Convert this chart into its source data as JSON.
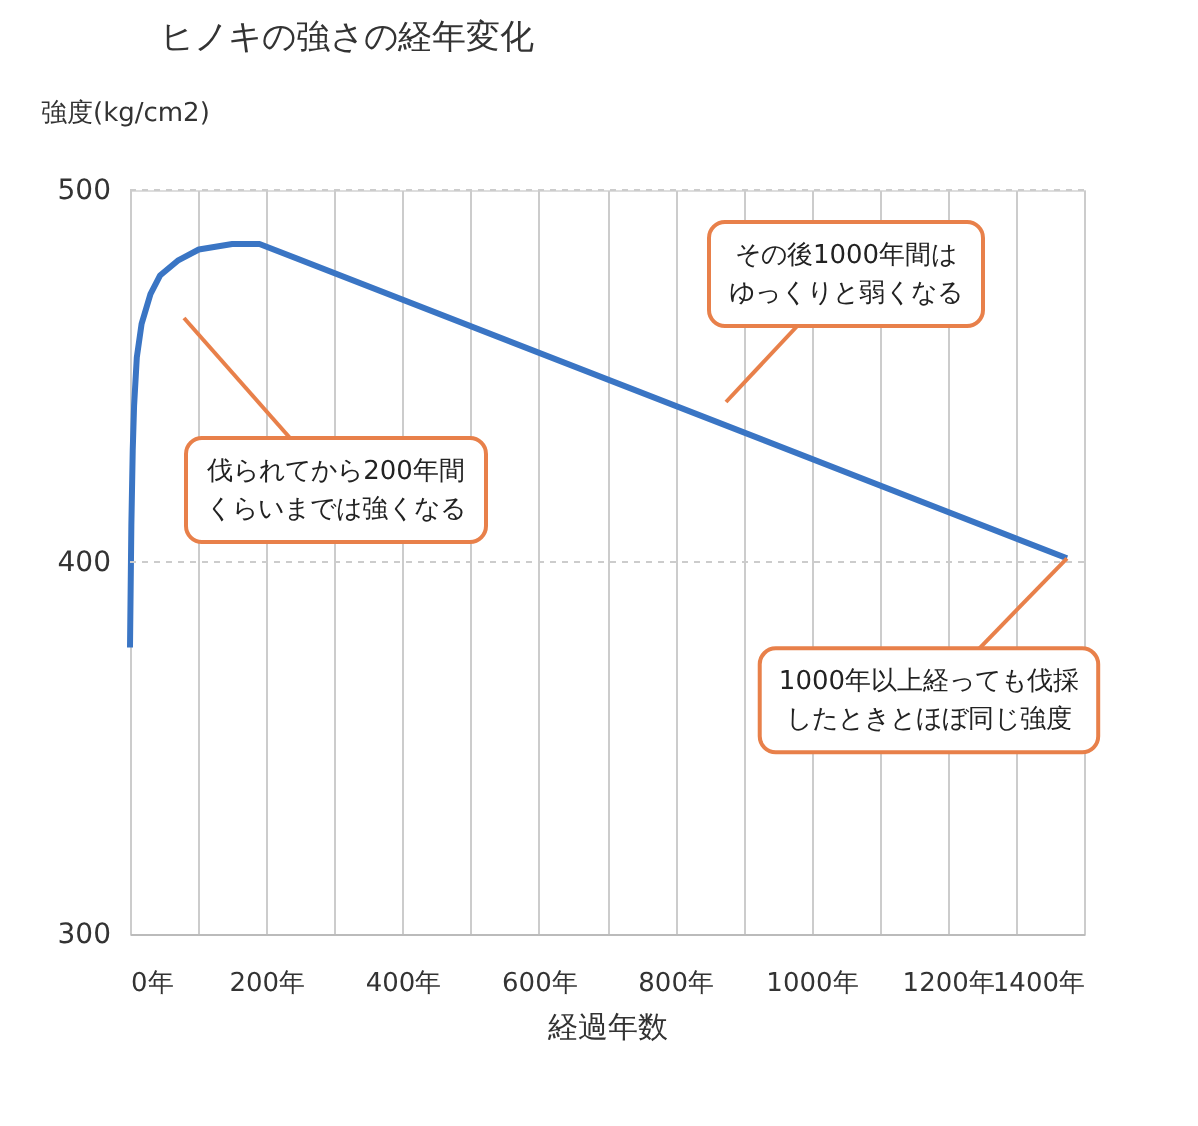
{
  "chart_data": {
    "type": "line",
    "title": "ヒノキの強さの経年変化",
    "ylabel": "強度(kg/cm2)",
    "xlabel": "経過年数",
    "x": [
      0,
      2,
      4,
      6,
      10,
      17,
      30,
      44,
      70,
      101,
      150,
      190,
      1375
    ],
    "series": [
      {
        "color": "#3a75c4",
        "values": [
          377,
          410,
          430,
          442,
          455,
          464,
          472,
          477,
          481,
          484,
          485.5,
          485.5,
          401
        ]
      }
    ],
    "xlim": [
      0,
      1400
    ],
    "xticks": [
      {
        "value": 0,
        "label": "0年"
      },
      {
        "value": 100,
        "label": null
      },
      {
        "value": 200,
        "label": "200年"
      },
      {
        "value": 300,
        "label": null
      },
      {
        "value": 400,
        "label": "400年"
      },
      {
        "value": 500,
        "label": null
      },
      {
        "value": 600,
        "label": "600年"
      },
      {
        "value": 700,
        "label": null
      },
      {
        "value": 800,
        "label": "800年"
      },
      {
        "value": 900,
        "label": null
      },
      {
        "value": 1000,
        "label": "1000年"
      },
      {
        "value": 1100,
        "label": null
      },
      {
        "value": 1200,
        "label": "1200年"
      },
      {
        "value": 1300,
        "label": null
      },
      {
        "value": 1400,
        "label": "1400年"
      }
    ],
    "ylim": [
      300,
      500
    ],
    "yticks": [
      300,
      400,
      500
    ],
    "grid": "x",
    "ref_lines": [
      {
        "axis": "y",
        "value": 400,
        "color": "#cccccc",
        "line_style": "dashed"
      },
      {
        "axis": "y",
        "value": 500,
        "color": "#cccccc",
        "line_style": "dashed"
      }
    ],
    "line_style": "solid",
    "marker": "none",
    "annotations": [
      "伐られてから200年間くらいまでは強くなる",
      "その後1000年間はゆっくりと弱くなる",
      {
        "text": "1000年以上経っても伐採したときとほぼ同じ強度",
        "x": 1375,
        "y": 401
      }
    ]
  }
}
